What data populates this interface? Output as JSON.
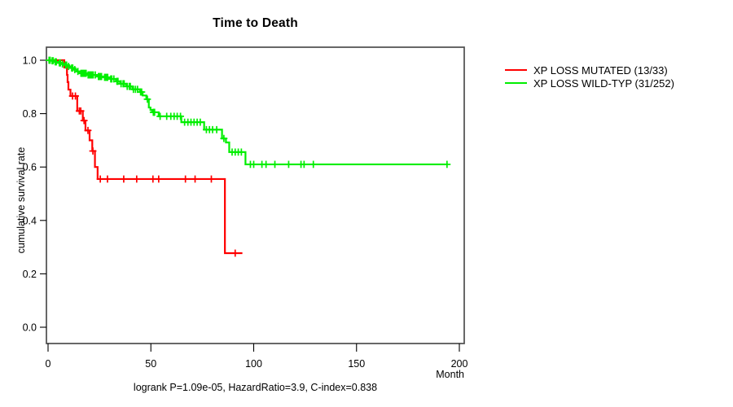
{
  "page": {
    "title": "Time to Death"
  },
  "chart_data": {
    "type": "line",
    "subtype": "kaplan-meier-step-survival",
    "title": "Time to Death",
    "xlabel": "Month",
    "ylabel": "cumulative survival rate",
    "xlim": [
      0,
      200
    ],
    "ylim": [
      0.0,
      1.0
    ],
    "xticks": [
      0,
      50,
      100,
      150,
      200
    ],
    "yticks": [
      0.0,
      0.2,
      0.4,
      0.6,
      0.8,
      1.0
    ],
    "grid": false,
    "legend_position": "right-outside",
    "annotation": "logrank P=1.09e-05, HazardRatio=3.9, C-index=0.838",
    "series": [
      {
        "name": "XP LOSS MUTATED (13/33)",
        "color": "#ff0000",
        "start_value": 1.0,
        "end_month": 94.5,
        "steps": [
          [
            7.9,
            0.973
          ],
          [
            9.2,
            0.945
          ],
          [
            9.5,
            0.918
          ],
          [
            9.9,
            0.89
          ],
          [
            10.9,
            0.866
          ],
          [
            14.2,
            0.81
          ],
          [
            16.9,
            0.774
          ],
          [
            18.2,
            0.737
          ],
          [
            20.2,
            0.7
          ],
          [
            21.5,
            0.66
          ],
          [
            22.8,
            0.6
          ],
          [
            24.1,
            0.555
          ],
          [
            86,
            0.2775
          ]
        ],
        "censors": [
          [
            11.9,
            0.866
          ],
          [
            13.3,
            0.866
          ],
          [
            15.2,
            0.81
          ],
          [
            15.9,
            0.81
          ],
          [
            17.5,
            0.774
          ],
          [
            19.4,
            0.737
          ],
          [
            21.8,
            0.66
          ],
          [
            25.4,
            0.555
          ],
          [
            28.9,
            0.555
          ],
          [
            36.8,
            0.555
          ],
          [
            43.1,
            0.555
          ],
          [
            51.0,
            0.555
          ],
          [
            53.8,
            0.555
          ],
          [
            66.8,
            0.555
          ],
          [
            71.5,
            0.555
          ],
          [
            79.4,
            0.555
          ],
          [
            91.0,
            0.2775
          ]
        ]
      },
      {
        "name": "XP LOSS WILD-TYP (31/252)",
        "color": "#00ee00",
        "start_value": 1.0,
        "end_month": 194.5,
        "steps": [
          [
            1.5,
            0.998
          ],
          [
            3,
            0.994
          ],
          [
            5,
            0.99
          ],
          [
            6.5,
            0.986
          ],
          [
            8,
            0.982
          ],
          [
            9.5,
            0.977
          ],
          [
            11,
            0.971
          ],
          [
            12.5,
            0.965
          ],
          [
            14,
            0.958
          ],
          [
            15.2,
            0.951
          ],
          [
            19,
            0.945
          ],
          [
            24,
            0.939
          ],
          [
            27,
            0.936
          ],
          [
            30,
            0.93
          ],
          [
            33,
            0.921
          ],
          [
            35,
            0.912
          ],
          [
            38,
            0.902
          ],
          [
            41,
            0.891
          ],
          [
            44.7,
            0.881
          ],
          [
            46,
            0.868
          ],
          [
            47.8,
            0.854
          ],
          [
            49,
            0.823
          ],
          [
            49.8,
            0.814
          ],
          [
            50.6,
            0.805
          ],
          [
            53.8,
            0.79
          ],
          [
            64.8,
            0.768
          ],
          [
            75.9,
            0.74
          ],
          [
            84.6,
            0.707
          ],
          [
            86.5,
            0.692
          ],
          [
            88.1,
            0.656
          ],
          [
            96,
            0.61
          ]
        ],
        "censors": [
          [
            0.5,
            1.0
          ],
          [
            1.0,
            1.0
          ],
          [
            2.0,
            0.998
          ],
          [
            2.5,
            0.998
          ],
          [
            3.5,
            0.994
          ],
          [
            4.0,
            0.994
          ],
          [
            5.5,
            0.99
          ],
          [
            6.0,
            0.99
          ],
          [
            7.0,
            0.986
          ],
          [
            8.5,
            0.982
          ],
          [
            9.0,
            0.982
          ],
          [
            10.0,
            0.977
          ],
          [
            11.5,
            0.971
          ],
          [
            12.0,
            0.971
          ],
          [
            13.0,
            0.965
          ],
          [
            14.5,
            0.958
          ],
          [
            16.0,
            0.951
          ],
          [
            16.5,
            0.951
          ],
          [
            17.0,
            0.951
          ],
          [
            17.5,
            0.951
          ],
          [
            18.0,
            0.951
          ],
          [
            18.5,
            0.951
          ],
          [
            19.5,
            0.945
          ],
          [
            20.0,
            0.945
          ],
          [
            20.5,
            0.945
          ],
          [
            21.0,
            0.945
          ],
          [
            21.5,
            0.945
          ],
          [
            22.0,
            0.945
          ],
          [
            23.0,
            0.945
          ],
          [
            24.5,
            0.939
          ],
          [
            25.0,
            0.939
          ],
          [
            25.5,
            0.939
          ],
          [
            26.0,
            0.939
          ],
          [
            27.5,
            0.936
          ],
          [
            28.0,
            0.936
          ],
          [
            28.5,
            0.936
          ],
          [
            29.0,
            0.936
          ],
          [
            30.5,
            0.93
          ],
          [
            31.0,
            0.93
          ],
          [
            32.0,
            0.93
          ],
          [
            33.5,
            0.921
          ],
          [
            34.0,
            0.921
          ],
          [
            35.5,
            0.912
          ],
          [
            36.5,
            0.912
          ],
          [
            37.0,
            0.912
          ],
          [
            38.5,
            0.902
          ],
          [
            39.5,
            0.902
          ],
          [
            40.0,
            0.902
          ],
          [
            41.5,
            0.891
          ],
          [
            42.5,
            0.891
          ],
          [
            43.5,
            0.891
          ],
          [
            45.0,
            0.881
          ],
          [
            45.5,
            0.881
          ],
          [
            48.3,
            0.854
          ],
          [
            51.2,
            0.805
          ],
          [
            51.8,
            0.805
          ],
          [
            54.5,
            0.79
          ],
          [
            57.7,
            0.79
          ],
          [
            59.7,
            0.79
          ],
          [
            61.3,
            0.79
          ],
          [
            62.8,
            0.79
          ],
          [
            64.4,
            0.79
          ],
          [
            66.4,
            0.768
          ],
          [
            68.0,
            0.768
          ],
          [
            69.5,
            0.768
          ],
          [
            71.0,
            0.768
          ],
          [
            72.5,
            0.768
          ],
          [
            74.0,
            0.768
          ],
          [
            77.0,
            0.74
          ],
          [
            78.5,
            0.74
          ],
          [
            80.0,
            0.74
          ],
          [
            82.0,
            0.74
          ],
          [
            85.5,
            0.707
          ],
          [
            89.5,
            0.656
          ],
          [
            91.0,
            0.656
          ],
          [
            92.5,
            0.656
          ],
          [
            94.0,
            0.656
          ],
          [
            98.4,
            0.61
          ],
          [
            100.0,
            0.61
          ],
          [
            104.0,
            0.61
          ],
          [
            106.0,
            0.61
          ],
          [
            110.3,
            0.61
          ],
          [
            117.0,
            0.61
          ],
          [
            123.0,
            0.61
          ],
          [
            124.5,
            0.61
          ],
          [
            129.0,
            0.61
          ],
          [
            194.0,
            0.61
          ]
        ]
      }
    ]
  }
}
